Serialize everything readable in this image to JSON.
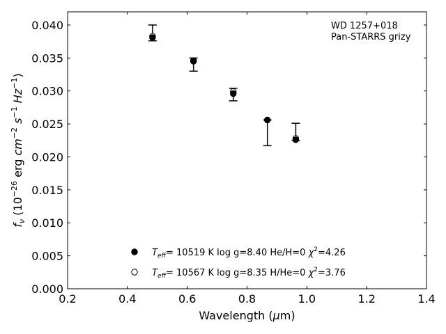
{
  "chart_data": {
    "type": "scatter",
    "annotation": [
      "WD 1257+018",
      "Pan-STARRS grizy"
    ],
    "xlabel": "Wavelength (μm)",
    "ylabel": "f_ν (10^-26 erg cm^-2 s^-1 Hz^-1)",
    "xlim": [
      0.2,
      1.4
    ],
    "ylim": [
      0.0,
      0.042
    ],
    "xticks": [
      "0.2",
      "0.4",
      "0.6",
      "0.8",
      "1.0",
      "1.2",
      "1.4"
    ],
    "yticks": [
      "0.000",
      "0.005",
      "0.010",
      "0.015",
      "0.020",
      "0.025",
      "0.030",
      "0.035",
      "0.040"
    ],
    "grid": false,
    "legend_position": "lower-center",
    "observed": {
      "x": [
        0.484,
        0.621,
        0.754,
        0.868,
        0.963
      ],
      "y": [
        0.038,
        0.0342,
        0.03,
        0.0254,
        0.0229
      ],
      "ylow": [
        0.0376,
        0.033,
        0.0285,
        0.0217,
        0.0225
      ],
      "yhigh": [
        0.04,
        0.035,
        0.0304,
        0.0256,
        0.0251
      ]
    },
    "series": [
      {
        "name": "T_eff= 10519 K  log g=8.40  He/H=0  χ²=4.26",
        "marker": "filled-circle",
        "x": [
          0.484,
          0.621,
          0.754,
          0.868,
          0.963
        ],
        "y": [
          0.0381,
          0.0346,
          0.0296,
          0.0256,
          0.0226
        ]
      },
      {
        "name": "T_eff= 10567 K  log g=8.35  H/He=0  χ²=3.76",
        "marker": "open-circle",
        "x": [
          0.484,
          0.621,
          0.754,
          0.868,
          0.963
        ],
        "y": [
          0.0383,
          0.0345,
          0.0299,
          0.0256,
          0.0228
        ]
      }
    ]
  }
}
